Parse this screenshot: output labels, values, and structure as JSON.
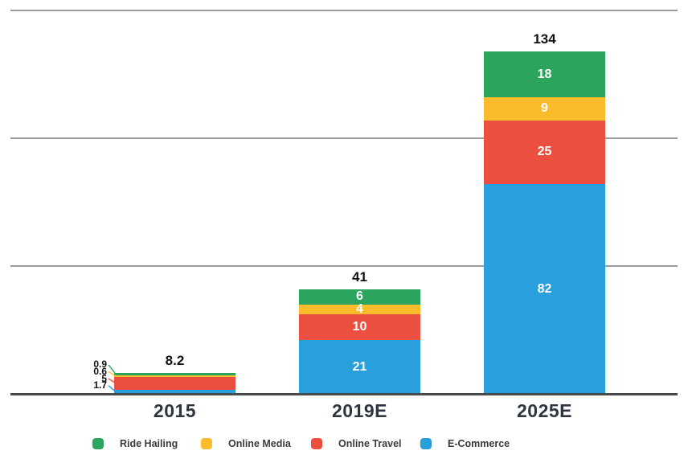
{
  "chart_data": {
    "type": "bar",
    "stacked": true,
    "title": "",
    "xlabel": "",
    "ylabel": "",
    "categories": [
      "2015",
      "2019E",
      "2025E"
    ],
    "series": [
      {
        "name": "E-Commerce",
        "color": "#29A0DC",
        "values": [
          1.7,
          21,
          82
        ]
      },
      {
        "name": "Online Travel",
        "color": "#EB4F40",
        "values": [
          5,
          10,
          25
        ]
      },
      {
        "name": "Online Media",
        "color": "#FBBC2B",
        "values": [
          0.6,
          4,
          9
        ]
      },
      {
        "name": "Ride Hailing",
        "color": "#2BA45D",
        "values": [
          0.9,
          6,
          18
        ]
      }
    ],
    "stack_order": "bottom-to-top",
    "totals": [
      8.2,
      41,
      134
    ],
    "total_labels": [
      "8.2",
      "41",
      "134"
    ],
    "small_bar_value_labels": [
      "0.9",
      "0.6",
      "5",
      "1.7"
    ],
    "ylim": [
      0,
      150
    ],
    "gridlines": [
      0,
      50,
      100,
      150
    ],
    "y_tick_labels_shown": false,
    "grid": true,
    "legend_position": "bottom",
    "legend": [
      {
        "label": "Ride Hailing",
        "color": "#2BA45D"
      },
      {
        "label": "Online Media",
        "color": "#FBBC2B"
      },
      {
        "label": "Online Travel",
        "color": "#EB4F40"
      },
      {
        "label": "E-Commerce",
        "color": "#29A0DC"
      }
    ]
  },
  "colors": {
    "background": "#ffffff",
    "gridline": "#9b9b9b",
    "axis": "#4a4a4a",
    "total_label": "#111111",
    "category_label": "#2f3540",
    "segment_label": "#ffffff",
    "small_label": "#111111",
    "legend_label": "#3a3a3a"
  }
}
